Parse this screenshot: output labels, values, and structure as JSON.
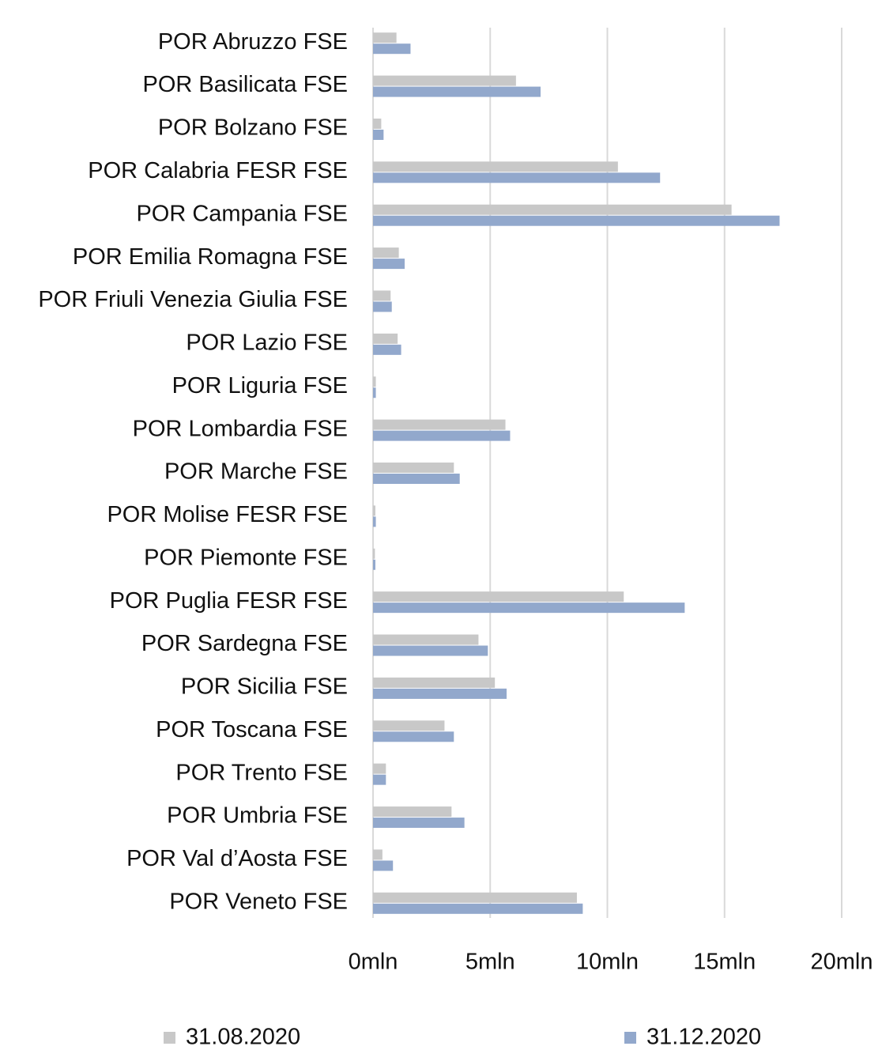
{
  "chart_data": {
    "type": "hbar",
    "categories": [
      "POR Abruzzo FSE",
      "POR Basilicata FSE",
      "POR Bolzano FSE",
      "POR Calabria FESR FSE",
      "POR Campania FSE",
      "POR Emilia Romagna FSE",
      "POR Friuli Venezia Giulia FSE",
      "POR Lazio FSE",
      "POR Liguria FSE",
      "POR Lombardia FSE",
      "POR Marche FSE",
      "POR Molise FESR FSE",
      "POR Piemonte FSE",
      "POR Puglia FESR FSE",
      "POR Sardegna FSE",
      "POR Sicilia FSE",
      "POR Toscana FSE",
      "POR Trento FSE",
      "POR Umbria FSE",
      "POR Val d’Aosta FSE",
      "POR Veneto FSE"
    ],
    "series": [
      {
        "name": "31.08.2020",
        "color": "#c8c8c8",
        "values": [
          1.0,
          6.1,
          0.35,
          10.45,
          15.3,
          1.1,
          0.75,
          1.05,
          0.12,
          5.65,
          3.45,
          0.1,
          0.08,
          10.7,
          4.5,
          5.2,
          3.05,
          0.55,
          3.35,
          0.4,
          8.7
        ]
      },
      {
        "name": "31.12.2020",
        "color": "#92a8cc",
        "values": [
          1.6,
          7.15,
          0.45,
          12.25,
          17.35,
          1.35,
          0.8,
          1.2,
          0.12,
          5.85,
          3.7,
          0.12,
          0.1,
          13.3,
          4.9,
          5.7,
          3.45,
          0.55,
          3.9,
          0.85,
          8.95
        ]
      }
    ],
    "xlim": [
      0,
      20
    ],
    "xticks": [
      {
        "value": 0,
        "label": "0mln"
      },
      {
        "value": 5,
        "label": "5mln"
      },
      {
        "value": 10,
        "label": "10mln"
      },
      {
        "value": 15,
        "label": "15mln"
      },
      {
        "value": 20,
        "label": "20mln"
      }
    ],
    "grid": true,
    "legend": "bottom"
  }
}
